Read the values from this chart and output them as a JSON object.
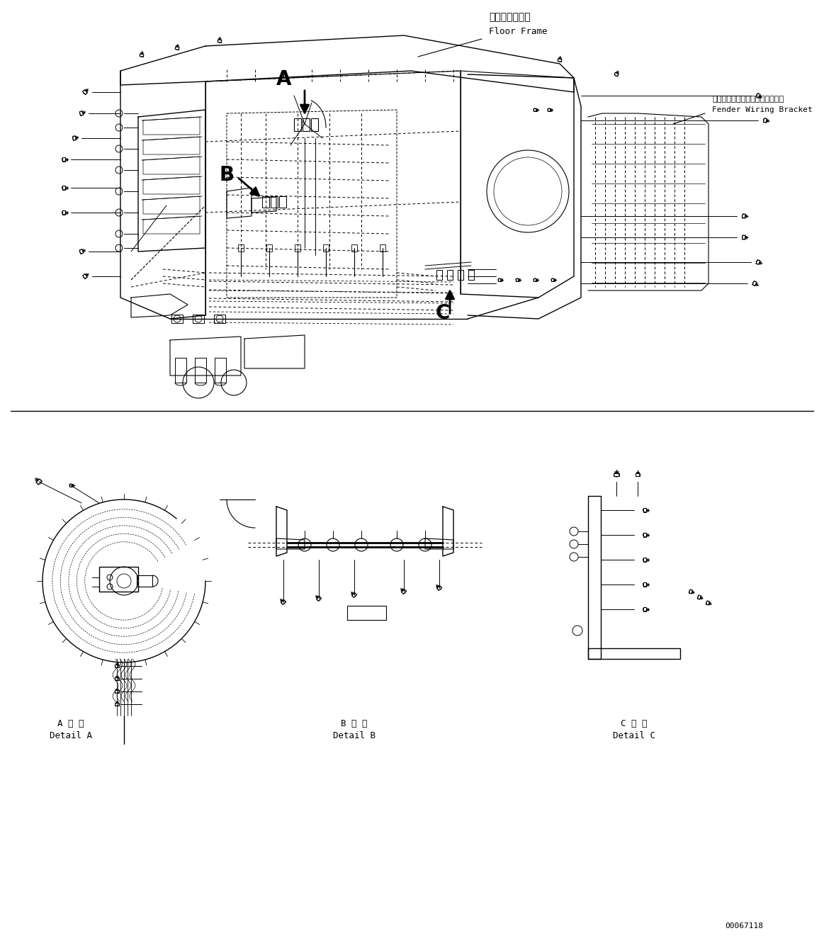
{
  "fig_width": 11.63,
  "fig_height": 13.31,
  "bg_color": "#ffffff",
  "lc": "#000000",
  "top_label_jp": "フロアフレーム",
  "top_label_en": "Floor Frame",
  "right_label_jp": "フェンダワイヤリングブラケット",
  "right_label_en": "Fender Wiring Bracket",
  "label_A_detail_jp": "A 詳 細",
  "label_A_detail_en": "Detail A",
  "label_B_detail_jp": "B 詳 細",
  "label_B_detail_en": "Detail B",
  "label_C_detail_jp": "C 詳 細",
  "label_C_detail_en": "Detail C",
  "part_number": "00067118"
}
